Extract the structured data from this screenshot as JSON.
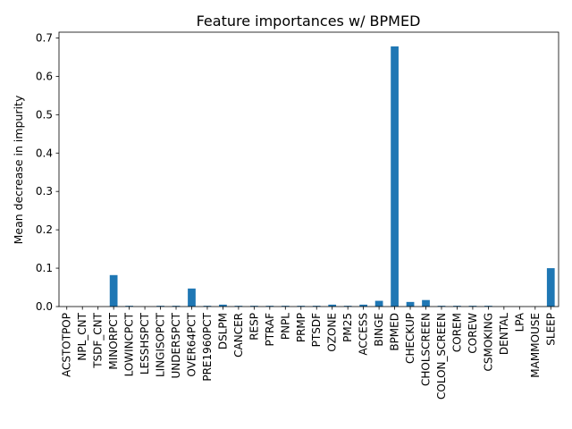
{
  "chart_data": {
    "type": "bar",
    "title": "Feature importances w/ BPMED",
    "xlabel": "",
    "ylabel": "Mean decrease in impurity",
    "ylim": [
      0,
      0.715
    ],
    "yticks": [
      0.0,
      0.1,
      0.2,
      0.3,
      0.4,
      0.5,
      0.6,
      0.7
    ],
    "ytick_labels": [
      "0.0",
      "0.1",
      "0.2",
      "0.3",
      "0.4",
      "0.5",
      "0.6",
      "0.7"
    ],
    "grid": false,
    "bar_color": "#1f77b4",
    "categories": [
      "ACSTOTPOP",
      "NPL_CNT",
      "TSDF_CNT",
      "MINORPCT",
      "LOWINCPCT",
      "LESSHSPCT",
      "LINGISOPCT",
      "UNDER5PCT",
      "OVER64PCT",
      "PRE1960PCT",
      "DSLPM",
      "CANCER",
      "RESP",
      "PTRAF",
      "PNPL",
      "PRMP",
      "PTSDF",
      "OZONE",
      "PM25",
      "ACCESS",
      "BINGE",
      "BPMED",
      "CHECKUP",
      "CHOLSCREEN",
      "COLON_SCREEN",
      "COREM",
      "COREW",
      "CSMOKING",
      "DENTAL",
      "LPA",
      "MAMMOUSE",
      "SLEEP"
    ],
    "values": [
      0.0002,
      0.0,
      0.0,
      0.082,
      0.002,
      0.0002,
      0.002,
      0.002,
      0.047,
      0.002,
      0.005,
      0.002,
      0.002,
      0.002,
      0.002,
      0.002,
      0.002,
      0.005,
      0.002,
      0.005,
      0.015,
      0.678,
      0.012,
      0.017,
      0.002,
      0.002,
      0.002,
      0.002,
      0.0002,
      0.0002,
      0.0002,
      0.1
    ]
  }
}
